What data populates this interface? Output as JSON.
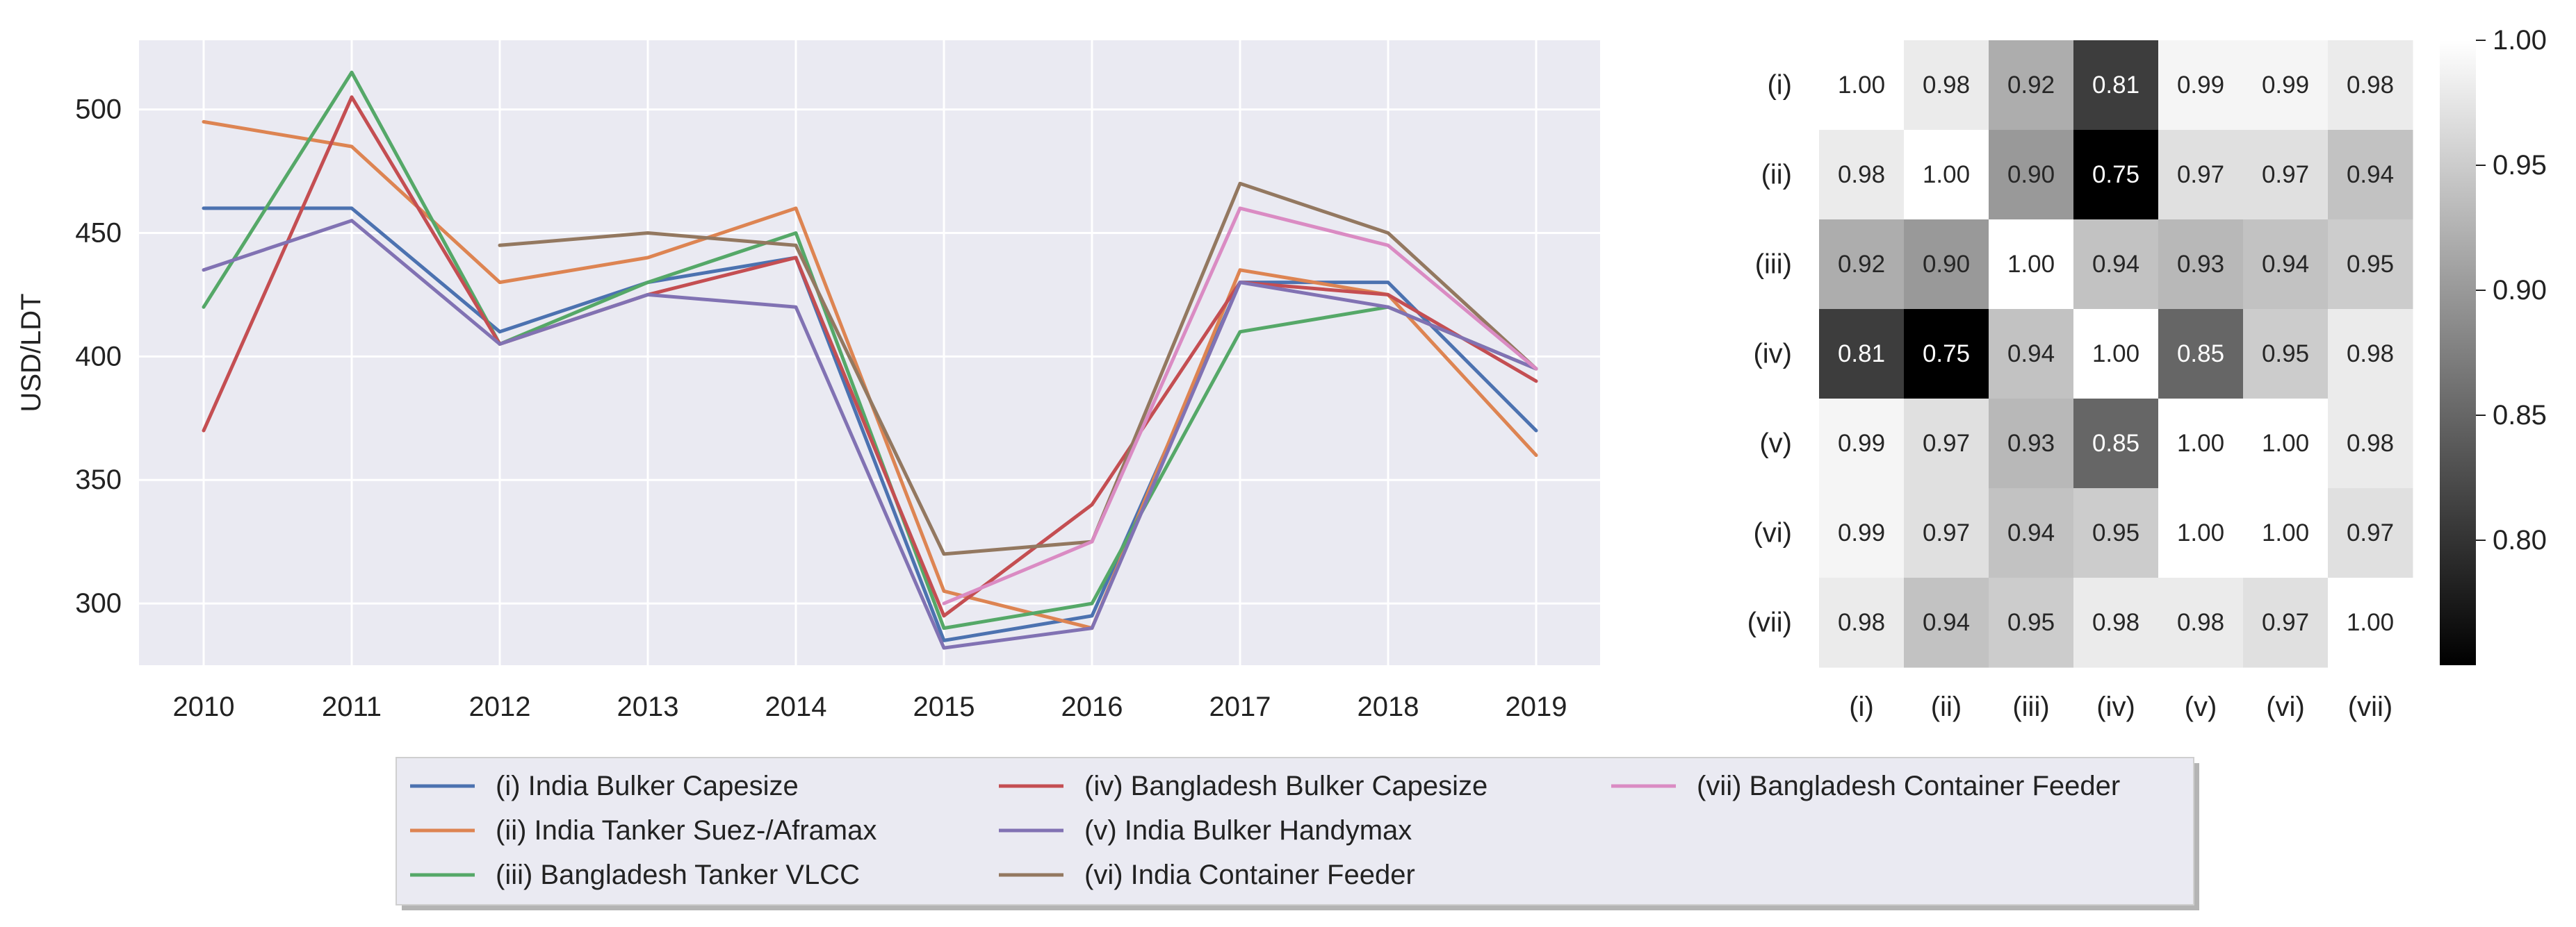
{
  "chart_data": [
    {
      "type": "line",
      "ylabel": "USD/LDT",
      "xlabel": "",
      "categories": [
        "2010",
        "2011",
        "2012",
        "2013",
        "2014",
        "2015",
        "2016",
        "2017",
        "2018",
        "2019"
      ],
      "yticks": [
        "300",
        "350",
        "400",
        "450",
        "500"
      ],
      "ylim": [
        275,
        528
      ],
      "grid": true,
      "legend_position": "bottom",
      "series": [
        {
          "name": "(i) India Bulker Capesize",
          "color": "#4c72b0",
          "values": [
            460,
            460,
            410,
            430,
            440,
            285,
            295,
            430,
            430,
            370
          ]
        },
        {
          "name": "(ii) India Tanker Suez-/Aframax",
          "color": "#dd8452",
          "values": [
            495,
            485,
            430,
            440,
            460,
            305,
            290,
            435,
            425,
            360
          ]
        },
        {
          "name": "(iii) Bangladesh Tanker VLCC",
          "color": "#55a868",
          "values": [
            420,
            515,
            405,
            430,
            450,
            290,
            300,
            410,
            420,
            395
          ]
        },
        {
          "name": "(iv) Bangladesh Bulker Capesize",
          "color": "#c44e52",
          "values": [
            370,
            505,
            405,
            425,
            440,
            295,
            340,
            430,
            425,
            390
          ]
        },
        {
          "name": "(v) India Bulker Handymax",
          "color": "#8172b3",
          "values": [
            435,
            455,
            405,
            425,
            420,
            282,
            290,
            430,
            420,
            395
          ]
        },
        {
          "name": "(vi) India Container Feeder",
          "color": "#937860",
          "values": [
            null,
            null,
            445,
            450,
            445,
            320,
            325,
            470,
            450,
            395
          ]
        },
        {
          "name": "(vii) Bangladesh Container Feeder",
          "color": "#da8bc3",
          "values": [
            null,
            null,
            null,
            null,
            null,
            300,
            325,
            460,
            445,
            395
          ]
        }
      ]
    },
    {
      "type": "heatmap",
      "row_labels": [
        "(i)",
        "(ii)",
        "(iii)",
        "(iv)",
        "(v)",
        "(vi)",
        "(vii)"
      ],
      "col_labels": [
        "(i)",
        "(ii)",
        "(iii)",
        "(iv)",
        "(v)",
        "(vi)",
        "(vii)"
      ],
      "values": [
        [
          1.0,
          0.98,
          0.92,
          0.81,
          0.99,
          0.99,
          0.98
        ],
        [
          0.98,
          1.0,
          0.9,
          0.75,
          0.97,
          0.97,
          0.94
        ],
        [
          0.92,
          0.9,
          1.0,
          0.94,
          0.93,
          0.94,
          0.95
        ],
        [
          0.81,
          0.75,
          0.94,
          1.0,
          0.85,
          0.95,
          0.98
        ],
        [
          0.99,
          0.97,
          0.93,
          0.85,
          1.0,
          1.0,
          0.98
        ],
        [
          0.99,
          0.97,
          0.94,
          0.95,
          1.0,
          1.0,
          0.97
        ],
        [
          0.98,
          0.94,
          0.95,
          0.98,
          0.98,
          0.97,
          1.0
        ]
      ],
      "value_labels": [
        [
          "1.00",
          "0.98",
          "0.92",
          "0.81",
          "0.99",
          "0.99",
          "0.98"
        ],
        [
          "0.98",
          "1.00",
          "0.90",
          "0.75",
          "0.97",
          "0.97",
          "0.94"
        ],
        [
          "0.92",
          "0.90",
          "1.00",
          "0.94",
          "0.93",
          "0.94",
          "0.95"
        ],
        [
          "0.81",
          "0.75",
          "0.94",
          "1.00",
          "0.85",
          "0.95",
          "0.98"
        ],
        [
          "0.99",
          "0.97",
          "0.93",
          "0.85",
          "1.00",
          "1.00",
          "0.98"
        ],
        [
          "0.99",
          "0.97",
          "0.94",
          "0.95",
          "1.00",
          "1.00",
          "0.97"
        ],
        [
          "0.98",
          "0.94",
          "0.95",
          "0.98",
          "0.98",
          "0.97",
          "1.00"
        ]
      ],
      "colormap": "greys",
      "colorbar_range": [
        0.75,
        1.0
      ],
      "colorbar_ticks": [
        "0.80",
        "0.85",
        "0.90",
        "0.95",
        "1.00"
      ]
    }
  ]
}
